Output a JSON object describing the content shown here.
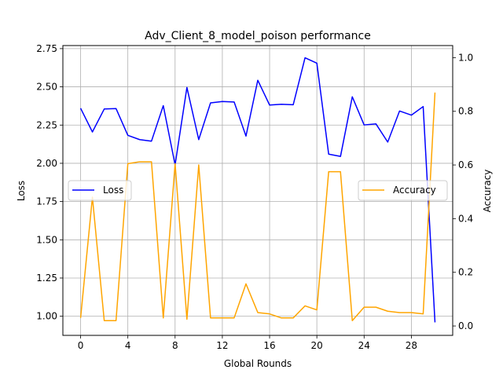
{
  "chart_data": {
    "type": "line",
    "title": "Adv_Client_8_model_poison performance",
    "xlabel": "Global Rounds",
    "ylabel_left": "Loss",
    "ylabel_right": "Accuracy",
    "xlim": [
      -1.5,
      31.5
    ],
    "ylim_left": [
      0.875,
      2.77
    ],
    "ylim_right": [
      -0.035,
      1.045
    ],
    "grid": true,
    "x_ticks": [
      0,
      4,
      8,
      12,
      16,
      20,
      24,
      28
    ],
    "y_left_ticks": [
      "1.00",
      "1.25",
      "1.50",
      "1.75",
      "2.00",
      "2.25",
      "2.50",
      "2.75"
    ],
    "y_right_ticks": [
      "0.0",
      "0.2",
      "0.4",
      "0.6",
      "0.8",
      "1.0"
    ],
    "x": [
      0,
      1,
      2,
      3,
      4,
      5,
      6,
      7,
      8,
      9,
      10,
      11,
      12,
      13,
      14,
      15,
      16,
      17,
      18,
      19,
      20,
      21,
      22,
      23,
      24,
      25,
      26,
      27,
      28,
      29,
      30
    ],
    "series": [
      {
        "name": "Loss",
        "axis": "left",
        "color": "#0000ff",
        "legend_position": "center-left",
        "values": [
          2.36,
          2.205,
          2.355,
          2.358,
          2.183,
          2.155,
          2.145,
          2.377,
          1.99,
          2.496,
          2.155,
          2.395,
          2.404,
          2.401,
          2.178,
          2.543,
          2.381,
          2.386,
          2.383,
          2.69,
          2.655,
          2.06,
          2.045,
          2.435,
          2.251,
          2.258,
          2.139,
          2.342,
          2.315,
          2.371,
          0.96
        ]
      },
      {
        "name": "Accuracy",
        "axis": "right",
        "color": "#ffa500",
        "legend_position": "center-right",
        "values": [
          0.03,
          0.48,
          0.02,
          0.02,
          0.605,
          0.612,
          0.612,
          0.03,
          0.605,
          0.025,
          0.6,
          0.03,
          0.03,
          0.03,
          0.157,
          0.05,
          0.045,
          0.03,
          0.03,
          0.075,
          0.06,
          0.575,
          0.575,
          0.02,
          0.07,
          0.07,
          0.055,
          0.05,
          0.05,
          0.045,
          0.87
        ]
      }
    ]
  }
}
